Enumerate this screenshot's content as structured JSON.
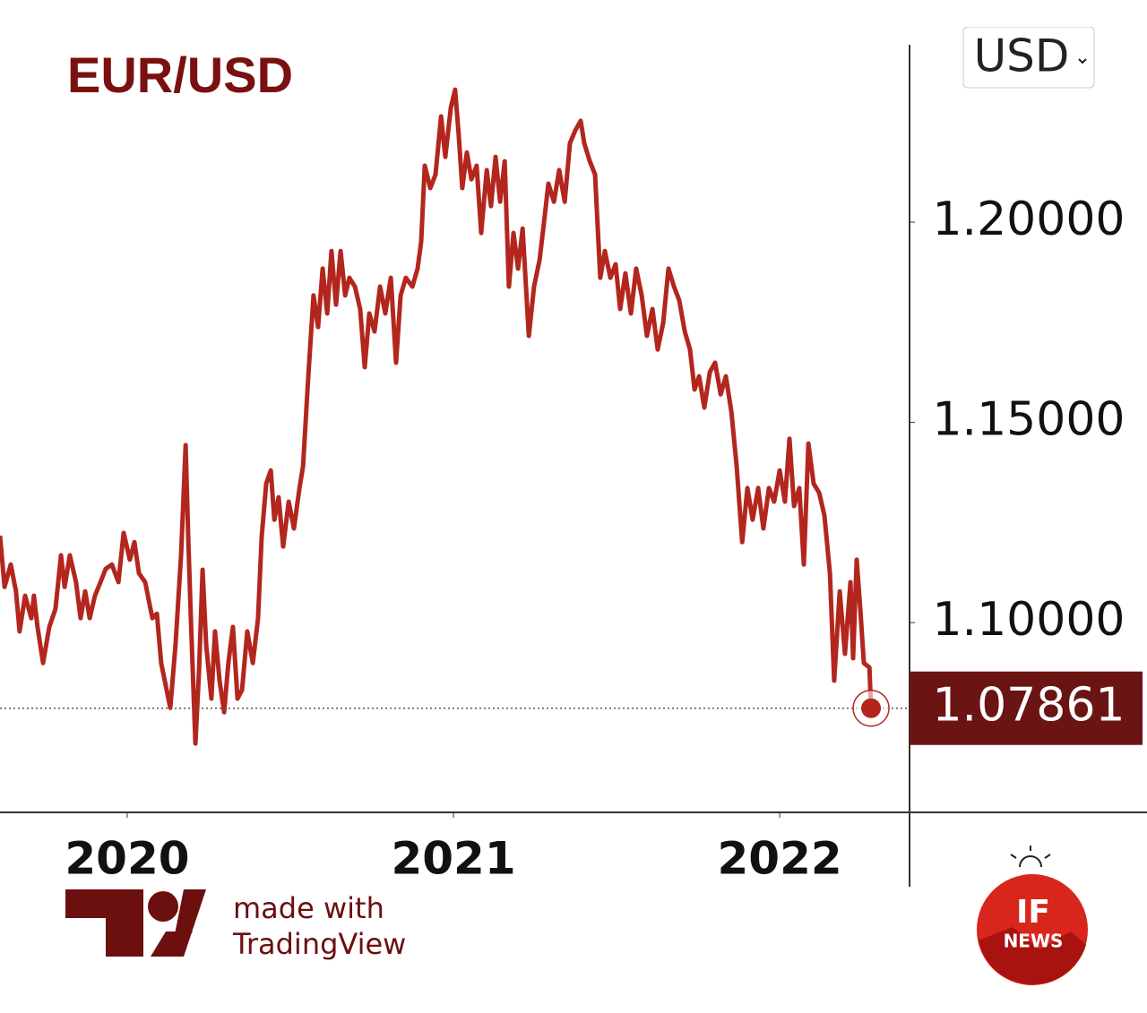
{
  "chart_data": {
    "type": "line",
    "title": "EUR/USD",
    "currency": "USD",
    "color": "#b3261e",
    "x": [
      2019.61,
      2019.624,
      2019.643,
      2019.659,
      2019.67,
      2019.687,
      2019.706,
      2019.714,
      2019.725,
      2019.742,
      2019.761,
      2019.78,
      2019.797,
      2019.808,
      2019.824,
      2019.843,
      2019.857,
      2019.871,
      2019.885,
      2019.901,
      2019.918,
      2019.934,
      2019.953,
      2019.973,
      2019.989,
      2020.008,
      2020.022,
      2020.036,
      2020.055,
      2020.077,
      2020.091,
      2020.104,
      2020.132,
      2020.148,
      2020.165,
      2020.179,
      2020.187,
      2020.195,
      2020.209,
      2020.22,
      2020.231,
      2020.242,
      2020.258,
      2020.269,
      2020.283,
      2020.297,
      2020.31,
      2020.324,
      2020.338,
      2020.352,
      2020.368,
      2020.385,
      2020.401,
      2020.412,
      2020.426,
      2020.44,
      2020.451,
      2020.464,
      2020.478,
      2020.495,
      2020.511,
      2020.528,
      2020.539,
      2020.555,
      2020.571,
      2020.585,
      2020.599,
      2020.613,
      2020.626,
      2020.64,
      2020.654,
      2020.668,
      2020.681,
      2020.698,
      2020.714,
      2020.728,
      2020.742,
      2020.758,
      2020.775,
      2020.791,
      2020.808,
      2020.824,
      2020.838,
      2020.854,
      2020.874,
      2020.89,
      2020.901,
      2020.912,
      2020.929,
      2020.945,
      2020.962,
      2020.975,
      2020.992,
      2021.005,
      2021.016,
      2021.027,
      2021.041,
      2021.055,
      2021.071,
      2021.085,
      2021.102,
      2021.115,
      2021.129,
      2021.143,
      2021.157,
      2021.17,
      2021.184,
      2021.198,
      2021.212,
      2021.231,
      2021.247,
      2021.264,
      2021.277,
      2021.291,
      2021.308,
      2021.324,
      2021.341,
      2021.357,
      2021.374,
      2021.39,
      2021.401,
      2021.418,
      2021.434,
      2021.45,
      2021.464,
      2021.481,
      2021.497,
      2021.511,
      2021.527,
      2021.544,
      2021.56,
      2021.577,
      2021.593,
      2021.61,
      2021.626,
      2021.643,
      2021.659,
      2021.676,
      2021.692,
      2021.709,
      2021.725,
      2021.739,
      2021.753,
      2021.769,
      2021.786,
      2021.802,
      2021.819,
      2021.835,
      2021.852,
      2021.868,
      2021.885,
      2021.901,
      2021.917,
      2021.934,
      2021.95,
      2021.967,
      2021.983,
      2022.0,
      2022.016,
      2022.03,
      2022.044,
      2022.06,
      2022.074,
      2022.088,
      2022.104,
      2022.121,
      2022.137,
      2022.154,
      2022.167,
      2022.184,
      2022.2,
      2022.217,
      2022.225,
      2022.236,
      2022.247,
      2022.258,
      2022.275,
      2022.28
    ],
    "values": [
      1.1217,
      1.1089,
      1.1145,
      1.1078,
      1.0978,
      1.1067,
      1.1011,
      1.1067,
      1.0989,
      1.0899,
      1.0989,
      1.1034,
      1.1168,
      1.1089,
      1.1168,
      1.1101,
      1.1011,
      1.1078,
      1.1011,
      1.1067,
      1.1101,
      1.1134,
      1.1145,
      1.1101,
      1.1224,
      1.1157,
      1.1201,
      1.1123,
      1.1101,
      1.1011,
      1.1022,
      1.0899,
      1.0787,
      1.0944,
      1.1168,
      1.1443,
      1.1213,
      1.1011,
      1.0698,
      1.0877,
      1.1132,
      1.0944,
      1.081,
      1.0978,
      1.0855,
      1.0776,
      1.0899,
      1.0989,
      1.081,
      1.0832,
      1.0978,
      1.0899,
      1.1011,
      1.1213,
      1.1347,
      1.138,
      1.1257,
      1.1313,
      1.119,
      1.1302,
      1.1235,
      1.1336,
      1.1391,
      1.1615,
      1.1817,
      1.1738,
      1.1884,
      1.1772,
      1.1928,
      1.1794,
      1.1928,
      1.1817,
      1.1861,
      1.1839,
      1.1783,
      1.1638,
      1.1772,
      1.1727,
      1.1839,
      1.1772,
      1.1861,
      1.1649,
      1.1817,
      1.1861,
      1.1839,
      1.1884,
      1.1951,
      1.2141,
      1.2085,
      1.2119,
      1.2264,
      1.2163,
      1.2286,
      1.2331,
      1.2219,
      1.2085,
      1.2174,
      1.2107,
      1.2141,
      1.1973,
      1.213,
      1.204,
      1.2163,
      1.2051,
      1.2152,
      1.1839,
      1.1973,
      1.1884,
      1.1984,
      1.1716,
      1.1839,
      1.1906,
      1.1996,
      1.2096,
      1.2051,
      1.213,
      1.2051,
      1.2197,
      1.223,
      1.2253,
      1.2197,
      1.2152,
      1.2119,
      1.1861,
      1.1928,
      1.1861,
      1.1895,
      1.1783,
      1.1872,
      1.1772,
      1.1884,
      1.1817,
      1.1716,
      1.1783,
      1.1682,
      1.1749,
      1.1884,
      1.1839,
      1.1805,
      1.1727,
      1.1682,
      1.1582,
      1.1615,
      1.1537,
      1.1626,
      1.1649,
      1.157,
      1.1615,
      1.1526,
      1.1391,
      1.1201,
      1.1336,
      1.1257,
      1.1336,
      1.1235,
      1.1336,
      1.1302,
      1.138,
      1.1302,
      1.1459,
      1.1291,
      1.1336,
      1.1145,
      1.1447,
      1.1347,
      1.1324,
      1.1268,
      1.1123,
      1.0855,
      1.1078,
      1.0922,
      1.1101,
      1.0911,
      1.1157,
      1.1034,
      1.0899,
      1.0888,
      1.07861
    ],
    "xlim": [
      2019.61,
      2022.398
    ],
    "xticks": [
      2020,
      2021,
      2022
    ],
    "ylim": [
      1.0526,
      1.2443
    ],
    "yticks": [
      {
        "value": 1.1,
        "label": "1.10000"
      },
      {
        "value": 1.15,
        "label": "1.15000"
      },
      {
        "value": 1.2,
        "label": "1.20000"
      }
    ]
  },
  "footer": {
    "made_with": "made with",
    "brand": "TradingView",
    "logo_top": "IF",
    "logo_bottom": "NEWS"
  }
}
